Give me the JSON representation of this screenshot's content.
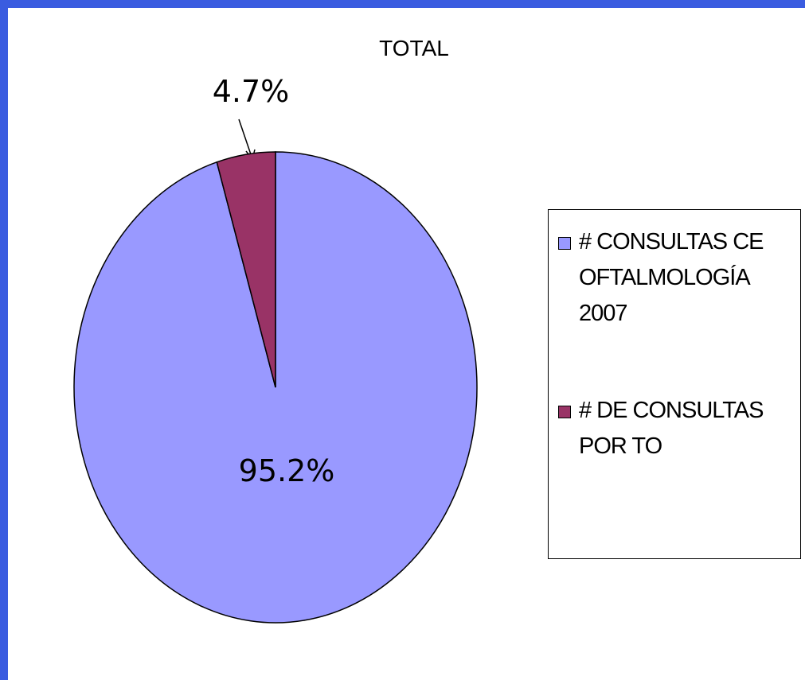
{
  "chart_data": {
    "type": "pie",
    "title": "TOTAL",
    "categories": [
      "# CONSULTAS CE OFTALMOLOGÍA 2007",
      "# DE CONSULTAS POR TO"
    ],
    "values": [
      95.2,
      4.7
    ],
    "value_labels": [
      "95.2%",
      "4.7%"
    ],
    "colors": [
      "#9999ff",
      "#993366"
    ],
    "legend": "right"
  }
}
